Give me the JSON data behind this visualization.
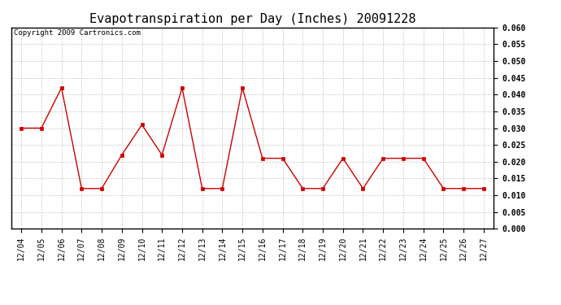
{
  "title": "Evapotranspiration per Day (Inches) 20091228",
  "copyright_text": "Copyright 2009 Cartronics.com",
  "x_labels": [
    "12/04",
    "12/05",
    "12/06",
    "12/07",
    "12/08",
    "12/09",
    "12/10",
    "12/11",
    "12/12",
    "12/13",
    "12/14",
    "12/15",
    "12/16",
    "12/17",
    "12/18",
    "12/19",
    "12/20",
    "12/21",
    "12/22",
    "12/23",
    "12/24",
    "12/25",
    "12/26",
    "12/27"
  ],
  "y_values": [
    0.03,
    0.03,
    0.042,
    0.012,
    0.012,
    0.022,
    0.031,
    0.022,
    0.042,
    0.012,
    0.012,
    0.042,
    0.021,
    0.021,
    0.012,
    0.012,
    0.021,
    0.012,
    0.021,
    0.021,
    0.021,
    0.012,
    0.012,
    0.012
  ],
  "line_color": "#cc0000",
  "marker": "s",
  "marker_size": 3,
  "ylim": [
    0.0,
    0.06
  ],
  "yticks": [
    0.0,
    0.005,
    0.01,
    0.015,
    0.02,
    0.025,
    0.03,
    0.035,
    0.04,
    0.045,
    0.05,
    0.055,
    0.06
  ],
  "bg_color": "#ffffff",
  "grid_color": "#bbbbbb",
  "title_fontsize": 11,
  "copyright_fontsize": 6.5,
  "tick_fontsize": 7,
  "figwidth": 6.9,
  "figheight": 3.75,
  "dpi": 100
}
